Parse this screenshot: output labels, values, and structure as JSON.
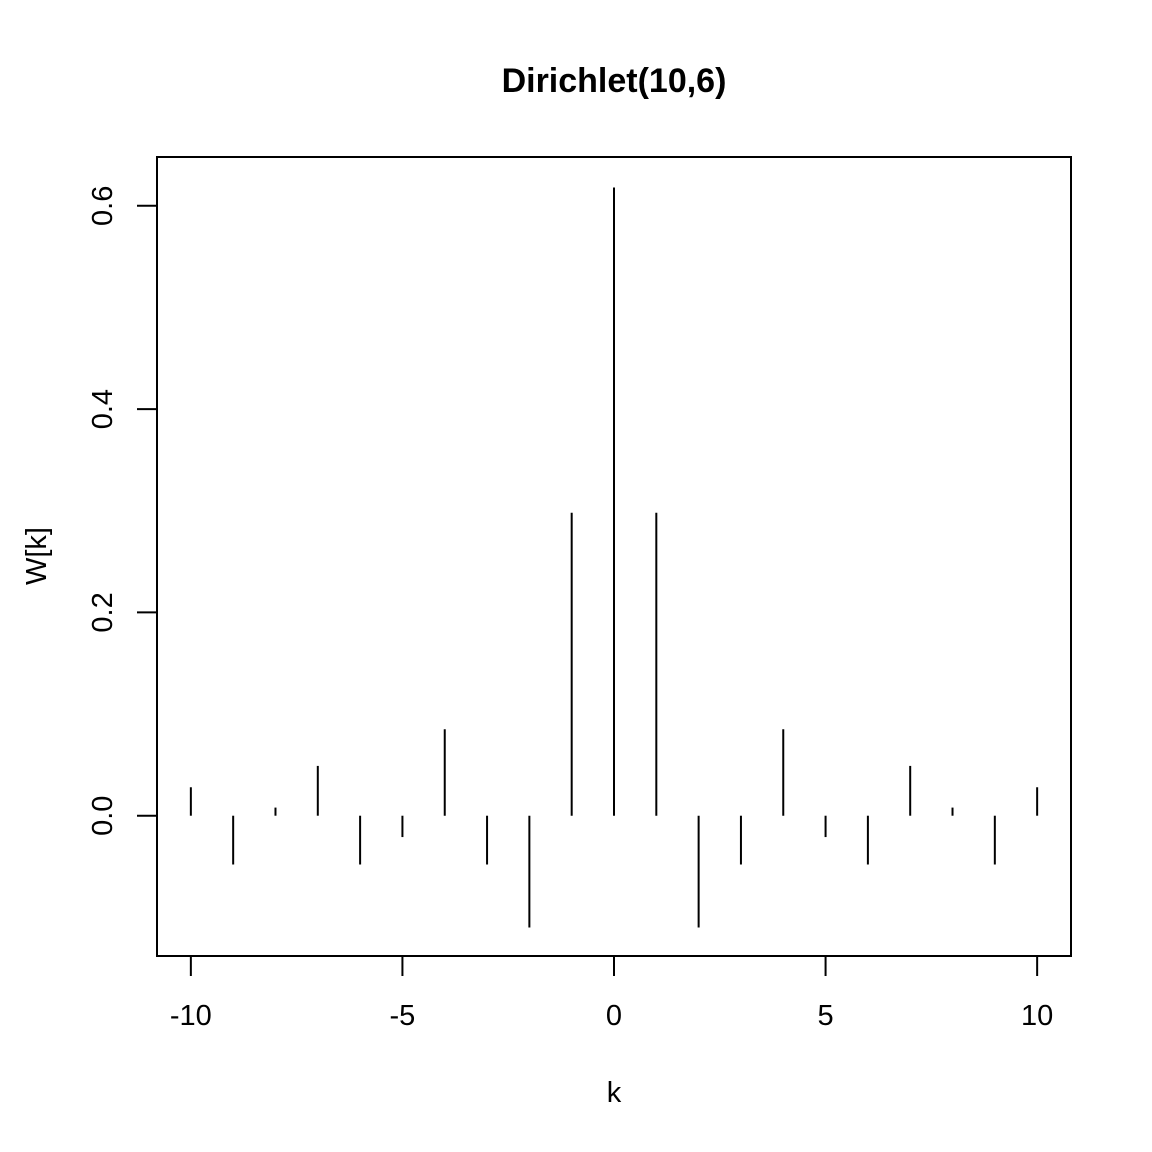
{
  "chart_data": {
    "type": "bar",
    "plot_style": "vertical-lines",
    "title": "Dirichlet(10,6)",
    "xlabel": "k",
    "ylabel": "W[k]",
    "xlim": [
      -10.8,
      10.8
    ],
    "ylim": [
      -0.138,
      0.648
    ],
    "x_ticks": [
      -10,
      -5,
      0,
      5,
      10
    ],
    "x_tick_labels": [
      "-10",
      "-5",
      "0",
      "5",
      "10"
    ],
    "y_ticks": [
      0.0,
      0.2,
      0.4,
      0.6
    ],
    "y_tick_labels": [
      "0.0",
      "0.2",
      "0.4",
      "0.6"
    ],
    "grid": false,
    "color": "#000000",
    "x": [
      -10,
      -9,
      -8,
      -7,
      -6,
      -5,
      -4,
      -3,
      -2,
      -1,
      0,
      1,
      2,
      3,
      4,
      5,
      6,
      7,
      8,
      9,
      10
    ],
    "values": [
      0.028,
      -0.048,
      0.008,
      0.049,
      -0.048,
      -0.021,
      0.085,
      -0.048,
      -0.11,
      0.298,
      0.618,
      0.298,
      -0.11,
      -0.048,
      0.085,
      -0.021,
      -0.048,
      0.049,
      0.008,
      -0.048,
      0.028
    ]
  }
}
